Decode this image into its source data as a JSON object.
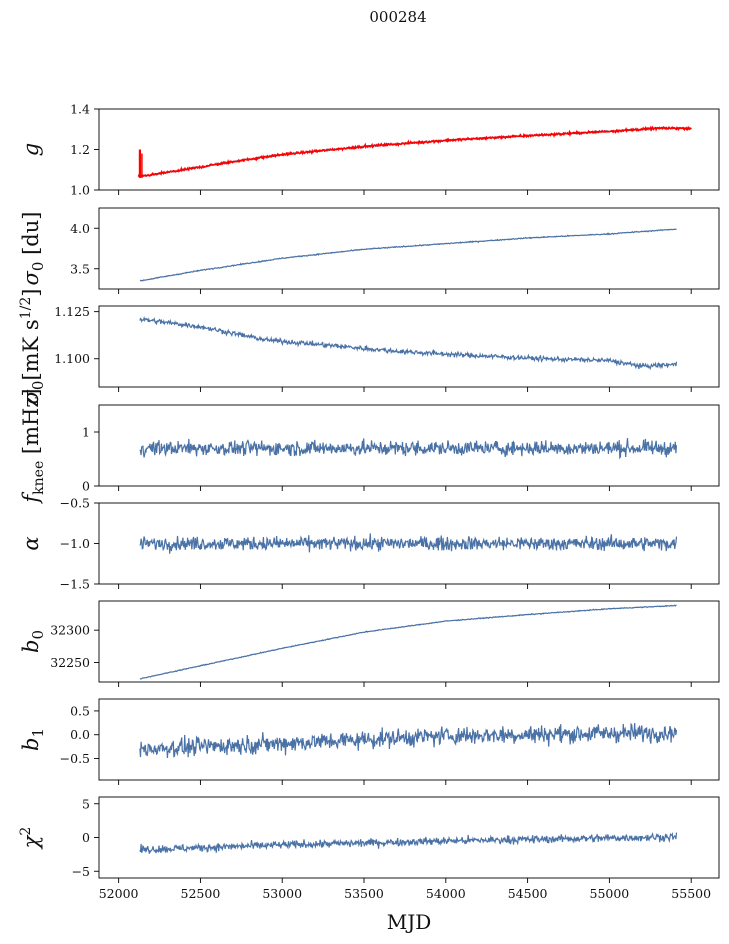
{
  "figure_title": "000284",
  "xlabel": "MJD",
  "colors": {
    "series": "#4a72a6",
    "gain_overlay": "#ff0000",
    "axes": "#000000"
  },
  "chart_data": [
    {
      "type": "line",
      "panel": "g",
      "ylabel": "g",
      "ylim": [
        1.0,
        1.4
      ],
      "yticks": [
        "1.0",
        "1.2",
        "1.4"
      ],
      "ytick_values": [
        1.0,
        1.2,
        1.4
      ],
      "xlim": [
        51880,
        55670
      ],
      "x_range": [
        52120,
        55500
      ],
      "trend": [
        [
          52120,
          1.065
        ],
        [
          52400,
          1.1
        ],
        [
          52700,
          1.14
        ],
        [
          53000,
          1.175
        ],
        [
          53500,
          1.215
        ],
        [
          54000,
          1.245
        ],
        [
          54500,
          1.268
        ],
        [
          55000,
          1.29
        ],
        [
          55300,
          1.305
        ],
        [
          55500,
          1.305
        ]
      ],
      "noise": 0.004,
      "overlay": "red",
      "spike": {
        "x": 52130,
        "range": [
          1.06,
          1.2
        ]
      }
    },
    {
      "type": "line",
      "panel": "sigma0_du",
      "ylabel": "σ0 [du]",
      "ylim": [
        3.25,
        4.25
      ],
      "yticks": [
        "3.5",
        "4.0"
      ],
      "ytick_values": [
        3.5,
        4.0
      ],
      "xlim": [
        51880,
        55670
      ],
      "x_range": [
        52130,
        55410
      ],
      "trend": [
        [
          52130,
          3.35
        ],
        [
          52500,
          3.48
        ],
        [
          53000,
          3.63
        ],
        [
          53500,
          3.74
        ],
        [
          54000,
          3.81
        ],
        [
          54500,
          3.88
        ],
        [
          55000,
          3.93
        ],
        [
          55410,
          3.99
        ]
      ],
      "noise": 0.006
    },
    {
      "type": "line",
      "panel": "sigma0_mk",
      "ylabel": "σ0[mK s1/2]",
      "ylim": [
        1.085,
        1.128
      ],
      "yticks": [
        "1.100",
        "1.125"
      ],
      "ytick_values": [
        1.1,
        1.125
      ],
      "xlim": [
        51880,
        55670
      ],
      "x_range": [
        52130,
        55410
      ],
      "trend": [
        [
          52130,
          1.121
        ],
        [
          52500,
          1.117
        ],
        [
          52900,
          1.11
        ],
        [
          53300,
          1.107
        ],
        [
          53700,
          1.104
        ],
        [
          54100,
          1.102
        ],
        [
          54600,
          1.1
        ],
        [
          55000,
          1.099
        ],
        [
          55200,
          1.096
        ],
        [
          55410,
          1.097
        ]
      ],
      "noise": 0.0012
    },
    {
      "type": "line",
      "panel": "fknee",
      "ylabel": "fknee [mHz]",
      "ylim": [
        0,
        1.5
      ],
      "yticks": [
        "0",
        "1"
      ],
      "ytick_values": [
        0,
        1
      ],
      "xlim": [
        51880,
        55670
      ],
      "x_range": [
        52130,
        55410
      ],
      "trend": [
        [
          52130,
          0.7
        ],
        [
          55410,
          0.7
        ]
      ],
      "noise": 0.13
    },
    {
      "type": "line",
      "panel": "alpha",
      "ylabel": "α",
      "ylim": [
        -1.5,
        -0.5
      ],
      "yticks": [
        "−1.5",
        "−1.0",
        "−0.5"
      ],
      "ytick_values": [
        -1.5,
        -1.0,
        -0.5
      ],
      "xlim": [
        51880,
        55670
      ],
      "x_range": [
        52130,
        55410
      ],
      "trend": [
        [
          52130,
          -1.0
        ],
        [
          55410,
          -1.0
        ]
      ],
      "noise": 0.08
    },
    {
      "type": "line",
      "panel": "b0",
      "ylabel": "b0",
      "ylim": [
        32220,
        32345
      ],
      "yticks": [
        "32250",
        "32300"
      ],
      "ytick_values": [
        32250,
        32300
      ],
      "xlim": [
        51880,
        55670
      ],
      "x_range": [
        52130,
        55410
      ],
      "trend": [
        [
          52130,
          32225
        ],
        [
          52500,
          32245
        ],
        [
          53000,
          32272
        ],
        [
          53500,
          32297
        ],
        [
          54000,
          32314
        ],
        [
          54500,
          32324
        ],
        [
          55000,
          32333
        ],
        [
          55410,
          32338
        ]
      ],
      "noise": 0.6
    },
    {
      "type": "line",
      "panel": "b1",
      "ylabel": "b1",
      "ylim": [
        -0.95,
        0.75
      ],
      "yticks": [
        "−0.5",
        "0.0",
        "0.5"
      ],
      "ytick_values": [
        -0.5,
        0.0,
        0.5
      ],
      "xlim": [
        51880,
        55670
      ],
      "x_range": [
        52130,
        55410
      ],
      "trend": [
        [
          52130,
          -0.3
        ],
        [
          53000,
          -0.18
        ],
        [
          54000,
          -0.02
        ],
        [
          55410,
          0.05
        ]
      ],
      "noise": 0.18
    },
    {
      "type": "line",
      "panel": "chi2",
      "ylabel": "χ2",
      "ylim": [
        -6,
        6
      ],
      "yticks": [
        "−5",
        "0",
        "5"
      ],
      "ytick_values": [
        -5,
        0,
        5
      ],
      "xlim": [
        51880,
        55670
      ],
      "x_range": [
        52130,
        55410
      ],
      "trend": [
        [
          52130,
          -1.8
        ],
        [
          53000,
          -1.1
        ],
        [
          54000,
          -0.5
        ],
        [
          55410,
          0.1
        ]
      ],
      "noise": 0.55
    }
  ],
  "xticks": [
    "52000",
    "52500",
    "53000",
    "53500",
    "54000",
    "54500",
    "55000",
    "55500"
  ],
  "xtick_values": [
    52000,
    52500,
    53000,
    53500,
    54000,
    54500,
    55000,
    55500
  ]
}
